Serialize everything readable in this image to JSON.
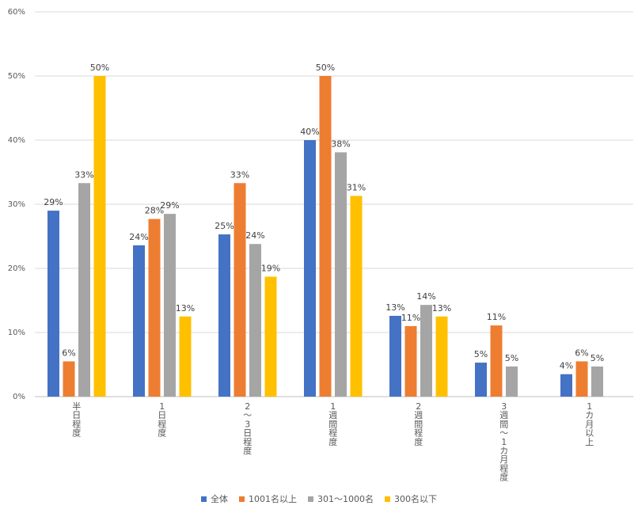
{
  "chart_data": {
    "type": "bar",
    "categories": [
      "半日程度",
      "1日程度",
      "2〜3日程度",
      "1週間程度",
      "2週間程度",
      "3週間〜1カ月程度",
      "1カ月以上"
    ],
    "series": [
      {
        "name": "全体",
        "color": "#4472C4",
        "values": [
          29,
          24,
          25,
          40,
          13,
          5,
          4
        ]
      },
      {
        "name": "1001名以上",
        "color": "#ED7D31",
        "values": [
          6,
          28,
          33,
          50,
          11,
          11,
          6
        ]
      },
      {
        "name": "301〜1000名",
        "color": "#A5A5A5",
        "values": [
          33,
          29,
          24,
          38,
          14,
          5,
          5
        ]
      },
      {
        "name": "300名以下",
        "color": "#FFC000",
        "values": [
          50,
          13,
          19,
          31,
          13,
          null,
          null
        ]
      }
    ],
    "bar_values": [
      [
        29,
        23.6,
        25.3,
        40,
        12.6,
        5.3,
        3.5
      ],
      [
        5.5,
        27.7,
        33.3,
        50,
        11,
        11.1,
        5.5
      ],
      [
        33.3,
        28.5,
        23.8,
        38.1,
        14.3,
        4.7,
        4.7
      ],
      [
        50,
        12.5,
        18.7,
        31.3,
        12.5,
        null,
        null
      ]
    ],
    "y_ticks": [
      "0%",
      "10%",
      "20%",
      "30%",
      "40%",
      "50%",
      "60%"
    ],
    "ylim": [
      0,
      60
    ],
    "value_suffix": "%",
    "grid": true,
    "legend_position": "bottom"
  }
}
